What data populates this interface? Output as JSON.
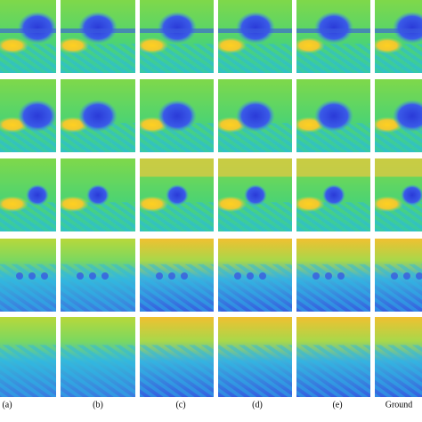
{
  "labels": [
    "(a)",
    "(b)",
    "(c)",
    "(d)",
    "(e)",
    "Ground"
  ]
}
